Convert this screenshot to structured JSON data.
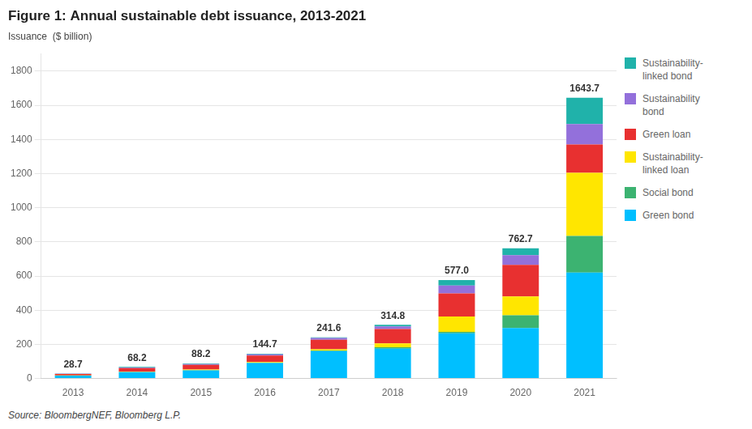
{
  "chart_data": {
    "type": "bar",
    "stacked": true,
    "title": "Figure 1: Annual sustainable debt issuance, 2013-2021",
    "ylabel": "Issuance  ($ billion)",
    "source": "Source: BloombergNEF, Bloomberg L.P.",
    "categories": [
      "2013",
      "2014",
      "2015",
      "2016",
      "2017",
      "2018",
      "2019",
      "2020",
      "2021"
    ],
    "series": [
      {
        "name": "Green bond",
        "color": "#00BFFF",
        "values": [
          17.0,
          37.0,
          47.0,
          90.0,
          160.0,
          175.0,
          265.0,
          295.0,
          620.0
        ]
      },
      {
        "name": "Social bond",
        "color": "#3CB371",
        "values": [
          0.5,
          1.5,
          2.5,
          2.5,
          3.5,
          8.0,
          8.0,
          75.0,
          215.0
        ]
      },
      {
        "name": "Sustainability-\nlinked loan",
        "color": "#FFE600",
        "values": [
          0.5,
          2.0,
          3.0,
          4.0,
          8.0,
          22.0,
          90.0,
          110.0,
          370.0
        ]
      },
      {
        "name": "Green loan",
        "color": "#E83030",
        "values": [
          8.0,
          20.0,
          27.0,
          38.0,
          55.0,
          85.0,
          135.0,
          185.0,
          165.0
        ]
      },
      {
        "name": "Sustainability\nbond",
        "color": "#9370DB",
        "values": [
          1.5,
          4.5,
          5.5,
          7.0,
          11.0,
          15.0,
          47.0,
          57.0,
          120.0
        ]
      },
      {
        "name": "Sustainability-\nlinked bond",
        "color": "#20B2AA",
        "values": [
          1.2,
          3.2,
          3.2,
          3.2,
          4.1,
          9.8,
          32.0,
          40.7,
          153.7
        ]
      }
    ],
    "totals": [
      28.7,
      68.2,
      88.2,
      144.7,
      241.6,
      314.8,
      577.0,
      762.7,
      1643.7
    ],
    "total_labels": [
      "28.7",
      "68.2",
      "88.2",
      "144.7",
      "241.6",
      "314.8",
      "577.0",
      "762.7",
      "1643.7"
    ],
    "ylim": [
      0,
      1900
    ],
    "yticks": [
      0,
      200,
      400,
      600,
      800,
      1000,
      1200,
      1400,
      1600,
      1800
    ],
    "grid": true,
    "legend": "right"
  }
}
